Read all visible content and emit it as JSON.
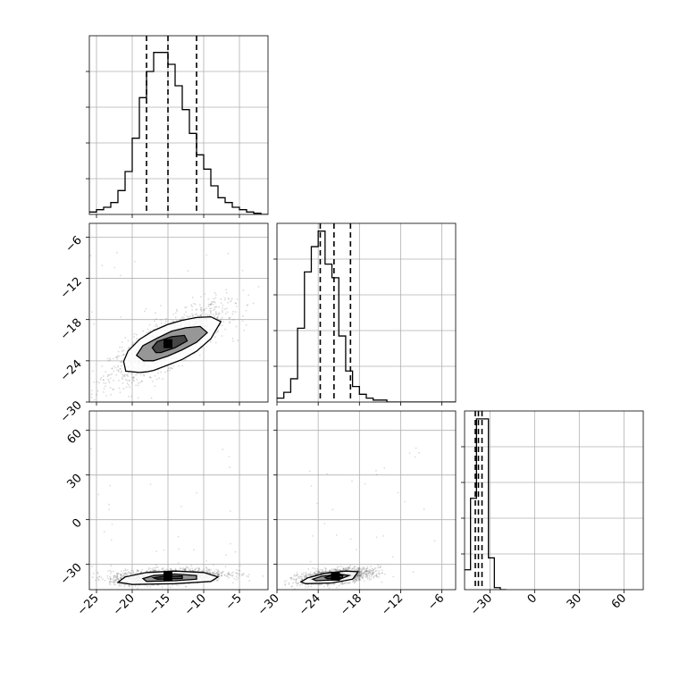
{
  "chart_data": {
    "type": "corner",
    "title": "",
    "grid": true,
    "parameters": [
      {
        "index": 0,
        "label": "",
        "range": [
          -26,
          -1
        ],
        "ticks": [
          -25,
          -20,
          -15,
          -10,
          -5
        ],
        "quantiles": [
          -18,
          -15,
          -11
        ]
      },
      {
        "index": 1,
        "label": "",
        "range": [
          -30,
          -4
        ],
        "ticks": [
          -30,
          -24,
          -18,
          -12,
          -6
        ],
        "quantiles": [
          -23.7,
          -21.7,
          -19.3
        ]
      },
      {
        "index": 2,
        "label": "",
        "range": [
          -47,
          73
        ],
        "ticks": [
          -30,
          0,
          30,
          60
        ],
        "quantiles": [
          -39.8,
          -37.7,
          -35.3
        ]
      }
    ],
    "histograms": [
      {
        "param": 0,
        "bin_edges": [
          -26,
          -25,
          -24,
          -23,
          -22,
          -21,
          -20,
          -19,
          -18,
          -17,
          -16,
          -15,
          -14,
          -13,
          -12,
          -11,
          -10,
          -9,
          -8,
          -7,
          -6,
          -5,
          -4,
          -3,
          -2,
          -1
        ],
        "counts": [
          0.01,
          0.02,
          0.03,
          0.05,
          0.1,
          0.18,
          0.32,
          0.49,
          0.6,
          0.68,
          0.68,
          0.63,
          0.54,
          0.44,
          0.34,
          0.25,
          0.19,
          0.12,
          0.07,
          0.05,
          0.03,
          0.02,
          0.01,
          0.005,
          0
        ],
        "ylim": [
          0,
          0.75
        ]
      },
      {
        "param": 1,
        "bin_edges": [
          -30,
          -29,
          -28,
          -27,
          -26,
          -25,
          -24,
          -23,
          -22,
          -21,
          -20,
          -19,
          -18,
          -17,
          -16,
          -15,
          -14,
          -13,
          -12,
          -11,
          -10,
          -9,
          -8,
          -7,
          -6,
          -5,
          -4
        ],
        "counts": [
          0.02,
          0.05,
          0.12,
          0.38,
          0.67,
          0.8,
          0.88,
          0.71,
          0.64,
          0.34,
          0.16,
          0.08,
          0.04,
          0.02,
          0.01,
          0.01,
          0,
          0,
          0,
          0,
          0,
          0,
          0,
          0,
          0,
          0
        ],
        "ylim": [
          0,
          0.92
        ]
      },
      {
        "param": 2,
        "bin_edges": [
          -47,
          -43,
          -39,
          -35,
          -31,
          -27,
          -23,
          -19
        ],
        "counts": [
          0.1,
          0.46,
          0.86,
          0.86,
          0.16,
          0.01,
          0
        ],
        "ylim": [
          0,
          0.9
        ]
      }
    ],
    "joint_panels": [
      {
        "x_param": 0,
        "y_param": 1,
        "center": [
          -15,
          -21.5
        ],
        "spread": [
          3.5,
          2.4
        ],
        "correlation": 0.8,
        "contours": [
          [
            [
              -18,
              -25.6
            ],
            [
              -17,
              -25.4
            ],
            [
              -15,
              -24.6
            ],
            [
              -13,
              -23.8
            ],
            [
              -11,
              -22.6
            ],
            [
              -9,
              -20.8
            ],
            [
              -7.6,
              -18.3
            ],
            [
              -9,
              -17.6
            ],
            [
              -11,
              -17.7
            ],
            [
              -13,
              -18.1
            ],
            [
              -15,
              -18.7
            ],
            [
              -17,
              -19.6
            ],
            [
              -19,
              -20.9
            ],
            [
              -20.6,
              -22.6
            ],
            [
              -21.2,
              -24.1
            ],
            [
              -20.9,
              -25.5
            ],
            [
              -19,
              -25.7
            ]
          ],
          [
            [
              -17,
              -24.0
            ],
            [
              -15,
              -23.3
            ],
            [
              -13,
              -22.4
            ],
            [
              -11,
              -21.3
            ],
            [
              -9.5,
              -19.9
            ],
            [
              -10.5,
              -19.0
            ],
            [
              -12.5,
              -19.2
            ],
            [
              -14.5,
              -19.7
            ],
            [
              -16.5,
              -20.7
            ],
            [
              -18.5,
              -21.8
            ],
            [
              -19.4,
              -23.2
            ],
            [
              -18.4,
              -24.0
            ]
          ],
          [
            [
              -16,
              -22.8
            ],
            [
              -14,
              -22.1
            ],
            [
              -12.3,
              -21.1
            ],
            [
              -12.7,
              -20.3
            ],
            [
              -14.5,
              -20.5
            ],
            [
              -16.5,
              -21.2
            ],
            [
              -17.2,
              -22.1
            ],
            [
              -16.7,
              -22.8
            ]
          ]
        ]
      },
      {
        "x_param": 0,
        "y_param": 2,
        "center": [
          -15,
          -38
        ],
        "spread": [
          3.5,
          2.2
        ],
        "correlation": 0.3,
        "contours": [
          [
            [
              -20,
              -43.5
            ],
            [
              -14,
              -43.0
            ],
            [
              -9,
              -41.5
            ],
            [
              -8,
              -38.5
            ],
            [
              -10,
              -35.5
            ],
            [
              -14,
              -34.5
            ],
            [
              -18,
              -35.5
            ],
            [
              -21,
              -38.5
            ],
            [
              -22,
              -42.0
            ]
          ],
          [
            [
              -18,
              -41.5
            ],
            [
              -14,
              -41.0
            ],
            [
              -11,
              -40.0
            ],
            [
              -11,
              -37.5
            ],
            [
              -14,
              -36.5
            ],
            [
              -17,
              -37.5
            ],
            [
              -18.5,
              -39.5
            ]
          ],
          [
            [
              -16.5,
              -40.0
            ],
            [
              -13,
              -39.5
            ],
            [
              -13,
              -37.8
            ],
            [
              -15.5,
              -38.0
            ],
            [
              -17,
              -39.0
            ]
          ]
        ]
      },
      {
        "x_param": 1,
        "y_param": 2,
        "center": [
          -21.5,
          -38
        ],
        "spread": [
          2.3,
          2.2
        ],
        "correlation": 0.45,
        "contours": [
          [
            [
              -25.8,
              -43.0
            ],
            [
              -22,
              -42.5
            ],
            [
              -19,
              -40.0
            ],
            [
              -18.2,
              -35.0
            ],
            [
              -20,
              -34.5
            ],
            [
              -23,
              -36.0
            ],
            [
              -25.5,
              -39.0
            ],
            [
              -26.5,
              -41.8
            ]
          ],
          [
            [
              -24.3,
              -41.0
            ],
            [
              -21,
              -40.3
            ],
            [
              -19.5,
              -37.5
            ],
            [
              -21,
              -36.5
            ],
            [
              -23.5,
              -38.0
            ],
            [
              -24.8,
              -40.0
            ]
          ],
          [
            [
              -22.7,
              -39.6
            ],
            [
              -20.5,
              -39.0
            ],
            [
              -20.4,
              -37.4
            ],
            [
              -22,
              -37.6
            ],
            [
              -23,
              -38.8
            ]
          ]
        ]
      }
    ]
  }
}
